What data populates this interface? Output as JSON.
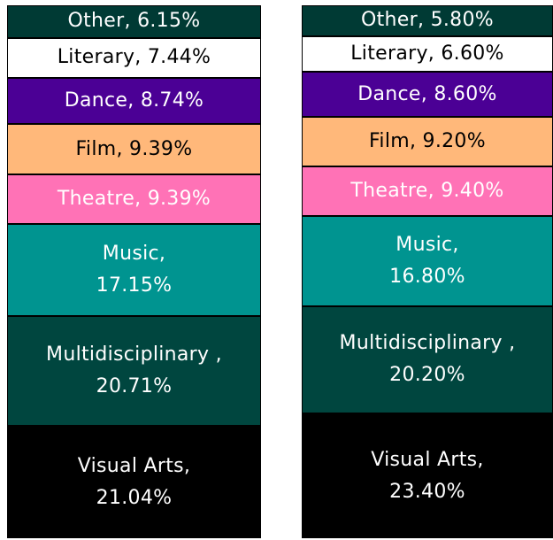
{
  "chart_data": {
    "type": "stacked_column",
    "categories": [
      "Visual Arts",
      "Multidisciplinary",
      "Music",
      "Theatre",
      "Film",
      "Dance",
      "Literary",
      "Other"
    ],
    "colors": [
      "#000000",
      "#00463f",
      "#009490",
      "#ff72b6",
      "#ffb87a",
      "#4b0095",
      "#ffffff",
      "#003a34"
    ],
    "label_colors": [
      "#ffffff",
      "#ffffff",
      "#ffffff",
      "#ffffff",
      "#000000",
      "#ffffff",
      "#000000",
      "#ffffff"
    ],
    "ylim": [
      0,
      100
    ],
    "series": [
      {
        "values": [
          21.04,
          20.71,
          17.15,
          9.39,
          9.39,
          8.74,
          7.44,
          6.15
        ],
        "value_labels": [
          "Visual Arts,\n21.04%",
          "Multidisciplinary ,\n20.71%",
          "Music,\n17.15%",
          "Theatre, 9.39%",
          "Film, 9.39%",
          "Dance, 8.74%",
          "Literary, 7.44%",
          "Other, 6.15%"
        ]
      },
      {
        "values": [
          23.4,
          20.2,
          16.8,
          9.4,
          9.2,
          8.6,
          6.6,
          5.8
        ],
        "value_labels": [
          "Visual Arts,\n23.40%",
          "Multidisciplinary ,\n20.20%",
          "Music,\n16.80%",
          "Theatre, 9.40%",
          "Film, 9.20%",
          "Dance, 8.60%",
          "Literary, 6.60%",
          "Other, 5.80%"
        ]
      }
    ]
  }
}
